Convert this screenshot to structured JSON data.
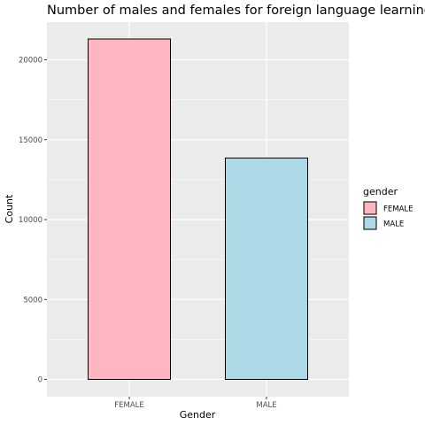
{
  "chart_data": {
    "type": "bar",
    "title": "Number of males and females for foreign language learning",
    "xlabel": "Gender",
    "ylabel": "Count",
    "categories": [
      "FEMALE",
      "MALE"
    ],
    "values": [
      21300,
      13850
    ],
    "colors": [
      "#FFB6C1",
      "#ADD8E6"
    ],
    "ylim": [
      0,
      22400
    ],
    "yticks": [
      0,
      5000,
      10000,
      15000,
      20000
    ],
    "grid": true,
    "legend": {
      "title": "gender",
      "position": "right",
      "entries": [
        "FEMALE",
        "MALE"
      ]
    },
    "panel_color": "#EBEBEB",
    "bar_outline": "#000000"
  }
}
